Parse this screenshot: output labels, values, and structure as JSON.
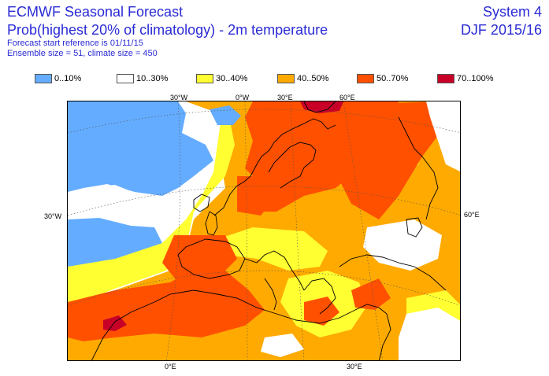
{
  "header": {
    "title": "ECMWF Seasonal Forecast",
    "subtitle": "Prob(highest 20% of climatology) - 2m temperature",
    "start_ref": "Forecast start reference is 01/11/15",
    "ensemble": "Ensemble size = 51, climate size = 450",
    "system": "System 4",
    "season": "DJF 2015/16"
  },
  "legend": [
    {
      "label": "0..10%",
      "color": "#64acff"
    },
    {
      "label": "10..30%",
      "color": "#ffffff"
    },
    {
      "label": "30..40%",
      "color": "#ffff32"
    },
    {
      "label": "40..50%",
      "color": "#ffaa00"
    },
    {
      "label": "50..70%",
      "color": "#ff5000"
    },
    {
      "label": "70..100%",
      "color": "#c80028"
    }
  ],
  "graticule": {
    "top": [
      "30°W",
      "0°W",
      "30°E",
      "60°E"
    ],
    "left": [
      "30°W"
    ],
    "right": [
      "60°E"
    ],
    "bottom": [
      "0°E",
      "30°E"
    ]
  }
}
